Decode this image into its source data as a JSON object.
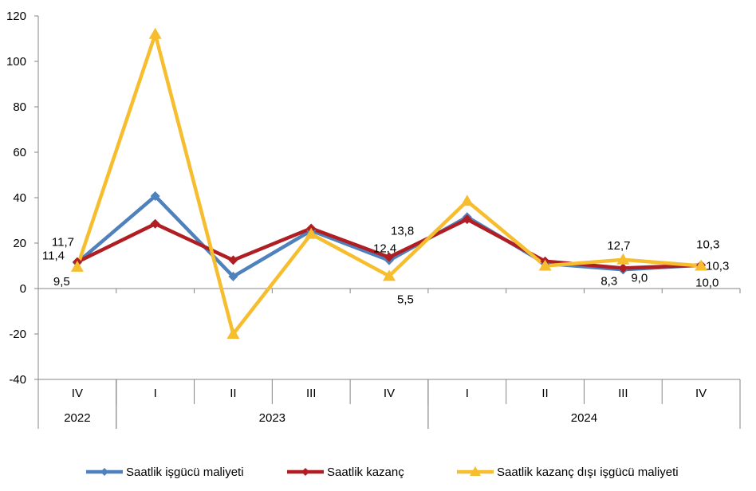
{
  "chart_data": {
    "type": "line",
    "title": "",
    "xlabel": "",
    "ylabel": "",
    "ylim": [
      -40,
      120
    ],
    "yticks": [
      -40,
      -20,
      0,
      20,
      40,
      60,
      80,
      100,
      120
    ],
    "ytick_labels": [
      "-40",
      "-20",
      "0",
      "20",
      "40",
      "60",
      "80",
      "100",
      "120"
    ],
    "grid": false,
    "legend_position": "bottom",
    "categories": [
      "IV",
      "I",
      "II",
      "III",
      "IV",
      "I",
      "II",
      "III",
      "IV"
    ],
    "years": [
      {
        "label": "2022",
        "start": 0,
        "end": 0
      },
      {
        "label": "2023",
        "start": 1,
        "end": 4
      },
      {
        "label": "2024",
        "start": 5,
        "end": 8
      }
    ],
    "series": [
      {
        "name": "Saatlik işgücü maliyeti",
        "color": "#4f81bd",
        "marker": "diamond",
        "values": [
          11.4,
          40.7,
          5.3,
          25.5,
          12.4,
          31.5,
          11.0,
          8.3,
          10.3
        ]
      },
      {
        "name": "Saatlik kazanç",
        "color": "#b01e23",
        "marker": "diamond",
        "values": [
          11.7,
          28.5,
          12.5,
          26.5,
          13.8,
          30.5,
          12.0,
          9.0,
          10.3
        ]
      },
      {
        "name": "Saatlik kazanç dışı işgücü maliyeti",
        "color": "#f6be2e",
        "marker": "triangle",
        "values": [
          9.5,
          112.0,
          -20.0,
          24.0,
          5.5,
          38.5,
          10.0,
          12.7,
          10.0
        ]
      }
    ],
    "annotations": [
      {
        "text": "11,7",
        "series": 1,
        "index": 0
      },
      {
        "text": "11,4",
        "series": 0,
        "index": 0
      },
      {
        "text": "9,5",
        "series": 2,
        "index": 0
      },
      {
        "text": "13,8",
        "series": 1,
        "index": 4
      },
      {
        "text": "12,4",
        "series": 0,
        "index": 4
      },
      {
        "text": "5,5",
        "series": 2,
        "index": 4
      },
      {
        "text": "12,7",
        "series": 2,
        "index": 7
      },
      {
        "text": "8,3",
        "series": 0,
        "index": 7
      },
      {
        "text": "9,0",
        "series": 1,
        "index": 7
      },
      {
        "text": "10,3",
        "series": 0,
        "index": 8
      },
      {
        "text": "10,3",
        "series": 1,
        "index": 8
      },
      {
        "text": "10,0",
        "series": 2,
        "index": 8
      }
    ]
  }
}
